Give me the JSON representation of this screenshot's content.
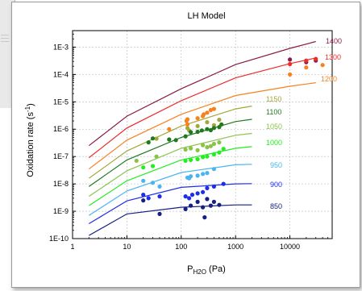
{
  "chart_data": {
    "type": "scatter",
    "title": "LH Model",
    "xlabel_main": "P",
    "xlabel_sub": "H2O",
    "xlabel_unit": " (Pa)",
    "ylabel_main": "Oxidation rate (s",
    "ylabel_sup": "-1",
    "ylabel_close": ")",
    "x_scale": "log",
    "y_scale": "log",
    "xlim": [
      1,
      60000
    ],
    "ylim": [
      1e-10,
      0.004
    ],
    "x_ticks": [
      1,
      10,
      100,
      1000,
      10000
    ],
    "x_tick_labels": [
      "1",
      "10",
      "100",
      "1000",
      "10000"
    ],
    "y_ticks": [
      1e-10,
      1e-09,
      1e-08,
      1e-07,
      1e-06,
      1e-05,
      0.0001,
      0.001
    ],
    "y_tick_labels": [
      "1E-10",
      "1E-9",
      "1E-8",
      "1E-7",
      "1E-6",
      "1E-5",
      "1E-4",
      "1E-3"
    ],
    "grid": true,
    "series": [
      {
        "name": "1400",
        "color": "#8b1a4a",
        "curve": [
          [
            2,
            2.5e-07
          ],
          [
            10,
            3e-06
          ],
          [
            100,
            3e-05
          ],
          [
            1000,
            0.00023
          ],
          [
            10000,
            0.0009
          ],
          [
            30000,
            0.0016
          ]
        ],
        "points": [
          [
            10000,
            0.00035
          ],
          [
            20000,
            0.00028
          ],
          [
            30000,
            0.00032
          ]
        ]
      },
      {
        "name": "1300",
        "color": "#ee2a2a",
        "curve": [
          [
            2,
            9e-08
          ],
          [
            10,
            1.1e-06
          ],
          [
            100,
            1.1e-05
          ],
          [
            1000,
            7.5e-05
          ],
          [
            10000,
            0.00025
          ],
          [
            30000,
            0.0004
          ]
        ],
        "points": [
          [
            10000,
            0.00024
          ],
          [
            20000,
            0.00032
          ],
          [
            30000,
            0.00037
          ]
        ]
      },
      {
        "name": "1200",
        "color": "#f5821f",
        "curve": [
          [
            2,
            3.5e-08
          ],
          [
            10,
            4e-07
          ],
          [
            100,
            3.5e-06
          ],
          [
            1000,
            1.7e-05
          ],
          [
            10000,
            3.7e-05
          ],
          [
            30000,
            5e-05
          ]
        ],
        "points": [
          [
            60,
            1e-06
          ],
          [
            125,
            2e-06
          ],
          [
            130,
            1.5e-06
          ],
          [
            130,
            2.3e-06
          ],
          [
            200,
            2.5e-06
          ],
          [
            250,
            3e-06
          ],
          [
            260,
            3.5e-06
          ],
          [
            300,
            4e-06
          ],
          [
            350,
            5e-06
          ],
          [
            400,
            5.5e-06
          ],
          [
            10000,
            0.0001
          ],
          [
            20000,
            0.00018
          ],
          [
            40000,
            0.00022
          ]
        ]
      },
      {
        "name": "1150",
        "color": "#a3a83a",
        "curve": [
          [
            2,
            1.6e-08
          ],
          [
            10,
            1.6e-07
          ],
          [
            100,
            1.3e-06
          ],
          [
            1000,
            5.5e-06
          ],
          [
            2000,
            7e-06
          ]
        ],
        "points": [
          [
            35,
            4.5e-07
          ],
          [
            130,
            1.1e-06
          ],
          [
            140,
            9e-07
          ],
          [
            200,
            1.3e-06
          ],
          [
            300,
            1.8e-06
          ],
          [
            400,
            1.4e-06
          ],
          [
            500,
            2.2e-06
          ]
        ]
      },
      {
        "name": "1100",
        "color": "#1f7a1f",
        "curve": [
          [
            2,
            8e-09
          ],
          [
            10,
            7.5e-08
          ],
          [
            100,
            5e-07
          ],
          [
            1000,
            1.9e-06
          ],
          [
            2000,
            2.3e-06
          ]
        ],
        "points": [
          [
            25,
            3.3e-07
          ],
          [
            30,
            4.6e-07
          ],
          [
            60,
            4.2e-07
          ],
          [
            80,
            4e-07
          ],
          [
            120,
            5.5e-07
          ],
          [
            150,
            7.8e-07
          ],
          [
            200,
            8e-07
          ],
          [
            240,
            9e-07
          ],
          [
            300,
            1e-06
          ],
          [
            350,
            9.2e-07
          ],
          [
            400,
            1.1e-06
          ],
          [
            500,
            1.2e-06
          ],
          [
            550,
            1.5e-06
          ]
        ]
      },
      {
        "name": "1050",
        "color": "#8bc34a",
        "curve": [
          [
            2,
            3.5e-09
          ],
          [
            10,
            3e-08
          ],
          [
            100,
            2e-07
          ],
          [
            1000,
            6e-07
          ],
          [
            2000,
            7e-07
          ]
        ],
        "points": [
          [
            15,
            7e-08
          ],
          [
            35,
            1e-07
          ],
          [
            120,
            1.8e-07
          ],
          [
            150,
            2e-07
          ],
          [
            200,
            1.7e-07
          ],
          [
            250,
            2.6e-07
          ],
          [
            300,
            2.2e-07
          ],
          [
            350,
            2.4e-07
          ],
          [
            400,
            2.9e-07
          ],
          [
            500,
            3.3e-07
          ]
        ]
      },
      {
        "name": "1000",
        "color": "#22ee22",
        "curve": [
          [
            2,
            1.6e-09
          ],
          [
            10,
            1.3e-08
          ],
          [
            100,
            7.5e-08
          ],
          [
            1000,
            2e-07
          ],
          [
            2000,
            2.3e-07
          ]
        ],
        "points": [
          [
            20,
            4e-08
          ],
          [
            30,
            4.5e-08
          ],
          [
            120,
            7e-08
          ],
          [
            150,
            7.5e-08
          ],
          [
            200,
            8e-08
          ],
          [
            250,
            9.5e-08
          ],
          [
            300,
            1e-07
          ],
          [
            400,
            1.2e-07
          ],
          [
            500,
            1.4e-07
          ],
          [
            600,
            1.9e-07
          ]
        ]
      },
      {
        "name": "950",
        "color": "#4ab4f0",
        "curve": [
          [
            2,
            7e-10
          ],
          [
            10,
            5.5e-09
          ],
          [
            100,
            2.6e-08
          ],
          [
            1000,
            5e-08
          ],
          [
            2000,
            5.2e-08
          ]
        ],
        "points": [
          [
            20,
            1.3e-08
          ],
          [
            30,
            1.1e-08
          ],
          [
            40,
            8e-09
          ],
          [
            130,
            1.7e-08
          ],
          [
            140,
            1.6e-08
          ],
          [
            150,
            1.9e-08
          ],
          [
            200,
            2e-08
          ],
          [
            250,
            2.3e-08
          ],
          [
            300,
            2.5e-08
          ],
          [
            400,
            3.5e-08
          ]
        ]
      },
      {
        "name": "900",
        "color": "#1e2ee8",
        "curve": [
          [
            2,
            3.5e-10
          ],
          [
            10,
            2.4e-09
          ],
          [
            100,
            7.5e-09
          ],
          [
            1000,
            1e-08
          ],
          [
            2000,
            1.02e-08
          ]
        ],
        "points": [
          [
            20,
            4e-09
          ],
          [
            25,
            3e-09
          ],
          [
            40,
            3.5e-09
          ],
          [
            120,
            3.5e-09
          ],
          [
            140,
            3e-09
          ],
          [
            160,
            4e-09
          ],
          [
            200,
            4.5e-09
          ],
          [
            250,
            5e-09
          ],
          [
            300,
            7e-09
          ],
          [
            400,
            8e-09
          ],
          [
            600,
            1e-08
          ]
        ]
      },
      {
        "name": "850",
        "color": "#152080",
        "curve": [
          [
            2,
            1.3e-10
          ],
          [
            10,
            8e-10
          ],
          [
            100,
            1.4e-09
          ],
          [
            1000,
            1.7e-09
          ],
          [
            2000,
            1.7e-09
          ]
        ],
        "points": [
          [
            20,
            2.5e-09
          ],
          [
            40,
            8e-10
          ],
          [
            120,
            1.2e-09
          ],
          [
            150,
            1.6e-09
          ],
          [
            200,
            2.2e-09
          ],
          [
            250,
            1.4e-09
          ],
          [
            300,
            2.8e-09
          ],
          [
            350,
            1.6e-09
          ],
          [
            400,
            2.2e-09
          ],
          [
            500,
            1.7e-09
          ],
          [
            270,
            6e-10
          ]
        ]
      }
    ]
  }
}
